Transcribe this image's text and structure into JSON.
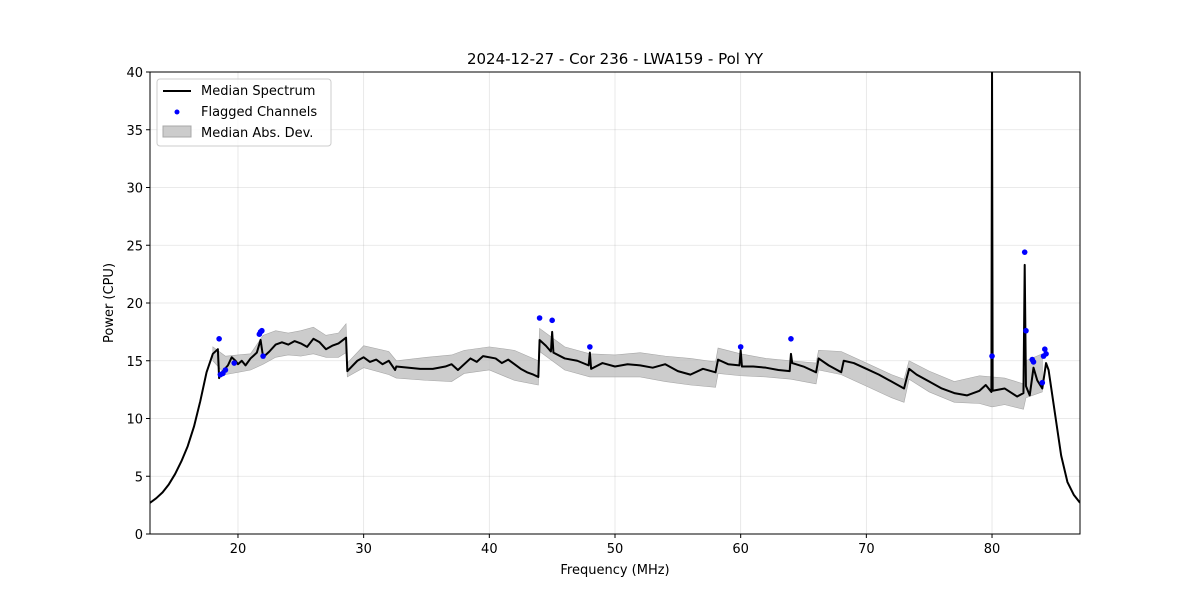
{
  "chart_data": {
    "type": "line",
    "title": "2024-12-27 - Cor 236 - LWA159 - Pol YY",
    "xlabel": "Frequency (MHz)",
    "ylabel": "Power (CPU)",
    "xlim": [
      13,
      87
    ],
    "ylim": [
      0,
      40
    ],
    "xticks": [
      20,
      30,
      40,
      50,
      60,
      70,
      80
    ],
    "yticks": [
      0,
      5,
      10,
      15,
      20,
      25,
      30,
      35,
      40
    ],
    "grid": true,
    "legend_position": "top-left",
    "colors": {
      "line": "#000000",
      "flagged": "#0000ff",
      "band": "#bfbfbf"
    },
    "series": [
      {
        "name": "Median Spectrum",
        "kind": "line",
        "x": [
          13.0,
          13.5,
          14.0,
          14.5,
          15.0,
          15.5,
          16.0,
          16.5,
          17.0,
          17.5,
          18.0,
          18.4,
          18.5,
          18.6,
          18.8,
          19.2,
          19.5,
          19.8,
          20.0,
          20.3,
          20.6,
          21.0,
          21.5,
          21.8,
          22.0,
          22.5,
          23.0,
          23.5,
          24.0,
          24.5,
          25.0,
          25.5,
          26.0,
          26.5,
          27.0,
          27.5,
          28.0,
          28.6,
          28.7,
          29.5,
          30.0,
          30.5,
          31.0,
          31.5,
          32.0,
          32.5,
          32.6,
          33.5,
          34.5,
          35.5,
          36.5,
          37.0,
          37.5,
          38.5,
          39.0,
          39.5,
          40.5,
          41.0,
          41.5,
          42.0,
          42.5,
          43.0,
          43.5,
          43.9,
          44.0,
          44.5,
          44.9,
          45.0,
          45.1,
          46.0,
          47.0,
          47.9,
          48.0,
          48.1,
          49.0,
          50.0,
          51.0,
          52.0,
          53.0,
          54.0,
          55.0,
          56.0,
          57.0,
          58.0,
          58.2,
          59.0,
          59.9,
          60.0,
          60.1,
          61.0,
          62.0,
          63.0,
          63.9,
          64.0,
          64.1,
          65.0,
          66.0,
          66.2,
          67.0,
          68.0,
          68.2,
          69.0,
          70.0,
          71.0,
          72.0,
          73.0,
          73.4,
          74.0,
          75.0,
          76.0,
          77.0,
          78.0,
          79.0,
          79.5,
          79.95,
          80.0,
          80.05,
          81.0,
          82.0,
          82.5,
          82.6,
          82.7,
          83.0,
          83.3,
          83.6,
          84.0,
          84.3,
          84.5,
          85.0,
          85.5,
          86.0,
          86.5,
          87.0
        ],
        "y": [
          2.7,
          3.1,
          3.6,
          4.3,
          5.2,
          6.3,
          7.6,
          9.3,
          11.5,
          14.0,
          15.6,
          16.0,
          13.5,
          13.8,
          14.1,
          14.6,
          15.3,
          15.0,
          14.7,
          15.0,
          14.6,
          15.2,
          15.7,
          16.8,
          15.3,
          15.8,
          16.4,
          16.6,
          16.4,
          16.7,
          16.5,
          16.2,
          16.9,
          16.6,
          16.0,
          16.3,
          16.5,
          17.0,
          14.1,
          15.0,
          15.3,
          14.9,
          15.1,
          14.7,
          15.0,
          14.2,
          14.5,
          14.4,
          14.3,
          14.3,
          14.5,
          14.7,
          14.2,
          15.2,
          14.9,
          15.4,
          15.2,
          14.8,
          15.1,
          14.7,
          14.3,
          14.0,
          13.8,
          13.6,
          16.8,
          16.3,
          15.8,
          17.5,
          15.7,
          15.2,
          15.0,
          14.6,
          15.7,
          14.3,
          14.8,
          14.5,
          14.7,
          14.6,
          14.4,
          14.7,
          14.1,
          13.8,
          14.3,
          14.0,
          15.1,
          14.7,
          14.6,
          15.9,
          14.5,
          14.5,
          14.4,
          14.2,
          14.1,
          15.6,
          14.8,
          14.5,
          14.0,
          15.2,
          14.6,
          14.0,
          15.0,
          14.8,
          14.3,
          13.8,
          13.2,
          12.6,
          14.3,
          13.8,
          13.2,
          12.6,
          12.2,
          12.0,
          12.4,
          12.9,
          12.3,
          40.0,
          12.4,
          12.6,
          11.9,
          12.2,
          23.3,
          12.8,
          12.0,
          14.4,
          13.3,
          12.6,
          14.8,
          14.2,
          10.5,
          6.8,
          4.5,
          3.4,
          2.7
        ]
      },
      {
        "name": "Flagged Channels",
        "kind": "scatter",
        "x": [
          18.5,
          18.6,
          18.8,
          19.0,
          19.7,
          21.7,
          21.8,
          21.9,
          22.0,
          44.0,
          45.0,
          48.0,
          60.0,
          64.0,
          80.0,
          82.6,
          82.7,
          83.2,
          83.3,
          84.0,
          84.1,
          84.2,
          84.3
        ],
        "y": [
          16.9,
          13.8,
          13.9,
          14.2,
          14.8,
          17.3,
          17.5,
          17.6,
          15.4,
          18.7,
          18.5,
          16.2,
          16.2,
          16.9,
          15.4,
          24.4,
          17.6,
          15.1,
          14.9,
          13.1,
          15.4,
          16.0,
          15.6
        ]
      },
      {
        "name": "Median Abs. Dev.",
        "kind": "band",
        "x": [
          18.0,
          19.0,
          20.0,
          21.0,
          22.0,
          23.0,
          24.0,
          25.0,
          26.0,
          27.0,
          28.0,
          28.6,
          28.7,
          30.0,
          32.0,
          32.6,
          35.0,
          37.0,
          38.0,
          40.0,
          42.0,
          43.9,
          44.0,
          46.0,
          48.0,
          50.0,
          52.0,
          54.0,
          56.0,
          58.0,
          58.2,
          60.0,
          62.0,
          64.0,
          66.0,
          66.2,
          68.0,
          70.0,
          72.0,
          73.0,
          73.4,
          75.0,
          77.0,
          79.0,
          80.0,
          81.0,
          82.5,
          82.7,
          84.0
        ],
        "lower": [
          15.0,
          13.8,
          14.0,
          14.2,
          14.7,
          15.3,
          15.5,
          15.4,
          15.6,
          15.3,
          15.3,
          15.7,
          13.6,
          14.4,
          13.8,
          13.5,
          13.3,
          13.2,
          13.9,
          14.2,
          13.3,
          12.9,
          15.8,
          14.2,
          13.6,
          13.6,
          13.6,
          13.2,
          12.9,
          12.7,
          13.9,
          13.7,
          13.6,
          13.4,
          13.0,
          14.2,
          13.8,
          12.8,
          11.8,
          11.4,
          13.4,
          12.3,
          11.4,
          11.3,
          11.0,
          11.2,
          10.8,
          11.8,
          12.3
        ],
        "upper": [
          16.2,
          15.4,
          15.5,
          15.6,
          17.2,
          17.6,
          17.4,
          17.6,
          17.9,
          17.2,
          17.4,
          18.2,
          14.8,
          16.3,
          15.8,
          15.0,
          15.3,
          15.5,
          15.9,
          16.2,
          15.9,
          15.0,
          17.8,
          16.2,
          15.6,
          15.5,
          15.7,
          15.4,
          15.2,
          14.9,
          16.1,
          15.6,
          15.2,
          15.0,
          14.8,
          15.9,
          15.8,
          14.8,
          13.8,
          13.4,
          15.0,
          14.1,
          13.2,
          13.7,
          13.6,
          13.5,
          13.0,
          15.0,
          15.6
        ]
      }
    ]
  }
}
